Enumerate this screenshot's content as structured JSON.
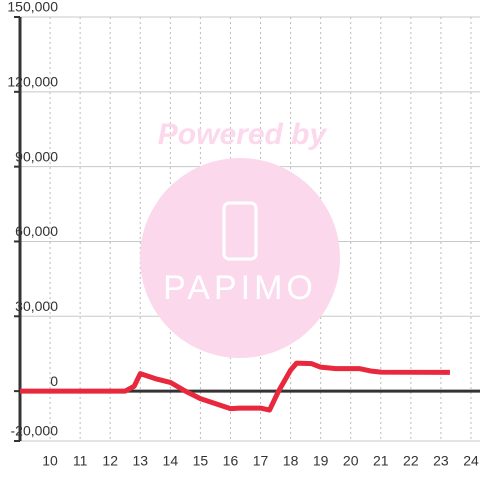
{
  "chart_data": {
    "type": "line",
    "watermark": {
      "line1": "Powered by",
      "line2": "PAPIMO"
    },
    "x": [
      9,
      12.5,
      12.8,
      13.0,
      13.5,
      14.0,
      14.5,
      15.0,
      15.5,
      16.0,
      16.3,
      17.0,
      17.3,
      17.6,
      18.0,
      18.2,
      18.7,
      19.0,
      19.5,
      20.3,
      20.7,
      21.0,
      23.3
    ],
    "series": [
      {
        "color": "#e8283c",
        "values": [
          0,
          0,
          2000,
          7000,
          5000,
          3500,
          0,
          -3000,
          -5000,
          -7000,
          -6800,
          -6800,
          -7600,
          0,
          8400,
          11200,
          11000,
          9600,
          9000,
          9000,
          8000,
          7600,
          7500
        ]
      }
    ],
    "xlim": [
      9,
      24.3
    ],
    "xticks": [
      10,
      11,
      12,
      13,
      14,
      15,
      16,
      17,
      18,
      19,
      20,
      21,
      22,
      23,
      24
    ],
    "ylim": [
      -20000,
      150000
    ],
    "yticks": [
      {
        "value": -20000,
        "label": "-20,000"
      },
      0,
      {
        "value": 30000,
        "label": "30,000"
      },
      {
        "value": 60000,
        "label": "60,000"
      },
      {
        "value": 90000,
        "label": "90,000"
      },
      {
        "value": 120000,
        "label": "120,000"
      },
      {
        "value": 150000,
        "label": "150,000"
      }
    ],
    "grid": true
  }
}
